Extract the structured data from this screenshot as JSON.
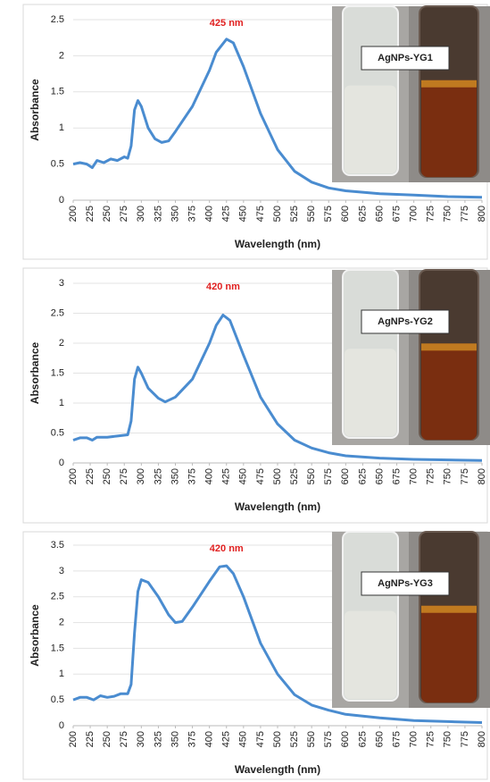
{
  "chart_data": [
    {
      "type": "line",
      "xlabel": "Wavelength (nm)",
      "ylabel": "Absorbance",
      "annotation": "425 nm",
      "sample_label": "AgNPs-YG1",
      "color": "#4a8cd0",
      "x": [
        200,
        210,
        220,
        228,
        235,
        245,
        255,
        265,
        275,
        280,
        285,
        290,
        295,
        300,
        310,
        320,
        330,
        340,
        350,
        375,
        400,
        410,
        425,
        435,
        450,
        475,
        500,
        525,
        550,
        575,
        600,
        650,
        700,
        750,
        800
      ],
      "values": [
        0.5,
        0.52,
        0.5,
        0.45,
        0.55,
        0.52,
        0.57,
        0.55,
        0.6,
        0.58,
        0.75,
        1.25,
        1.38,
        1.3,
        1.0,
        0.85,
        0.8,
        0.82,
        0.95,
        1.3,
        1.8,
        2.05,
        2.23,
        2.18,
        1.85,
        1.2,
        0.7,
        0.4,
        0.25,
        0.17,
        0.13,
        0.09,
        0.07,
        0.05,
        0.04
      ],
      "xlim": [
        200,
        800
      ],
      "xticks": [
        200,
        225,
        250,
        275,
        300,
        325,
        350,
        375,
        400,
        425,
        450,
        475,
        500,
        525,
        550,
        575,
        600,
        625,
        650,
        675,
        700,
        725,
        750,
        775,
        800
      ],
      "ylim": [
        0,
        2.5
      ],
      "yticks": [
        0,
        0.5,
        1,
        1.5,
        2,
        2.5
      ],
      "grid": true
    },
    {
      "type": "line",
      "xlabel": "Wavelength (nm)",
      "ylabel": "Absorbance",
      "annotation": "420 nm",
      "sample_label": "AgNPs-YG2",
      "color": "#4a8cd0",
      "x": [
        200,
        210,
        220,
        228,
        235,
        250,
        265,
        280,
        285,
        290,
        295,
        300,
        310,
        325,
        335,
        350,
        375,
        400,
        410,
        420,
        430,
        450,
        475,
        500,
        525,
        550,
        575,
        600,
        650,
        700,
        750,
        800
      ],
      "values": [
        0.38,
        0.42,
        0.42,
        0.38,
        0.43,
        0.43,
        0.45,
        0.47,
        0.7,
        1.4,
        1.6,
        1.5,
        1.25,
        1.08,
        1.02,
        1.1,
        1.4,
        2.0,
        2.3,
        2.47,
        2.38,
        1.8,
        1.1,
        0.65,
        0.38,
        0.25,
        0.17,
        0.12,
        0.08,
        0.06,
        0.05,
        0.04
      ],
      "xlim": [
        200,
        800
      ],
      "xticks": [
        200,
        225,
        250,
        275,
        300,
        325,
        350,
        375,
        400,
        425,
        450,
        475,
        500,
        525,
        550,
        575,
        600,
        625,
        650,
        675,
        700,
        725,
        750,
        775,
        800
      ],
      "ylim": [
        0,
        3
      ],
      "yticks": [
        0,
        0.5,
        1,
        1.5,
        2,
        2.5,
        3
      ],
      "grid": true
    },
    {
      "type": "line",
      "xlabel": "Wavelength (nm)",
      "ylabel": "Absorbance",
      "annotation": "420 nm",
      "sample_label": "AgNPs-YG3",
      "color": "#4a8cd0",
      "x": [
        200,
        210,
        220,
        230,
        240,
        250,
        260,
        270,
        280,
        285,
        290,
        295,
        300,
        310,
        325,
        340,
        350,
        360,
        375,
        400,
        415,
        425,
        435,
        450,
        475,
        500,
        525,
        550,
        575,
        600,
        650,
        700,
        750,
        800
      ],
      "values": [
        0.5,
        0.55,
        0.55,
        0.5,
        0.58,
        0.55,
        0.57,
        0.62,
        0.62,
        0.8,
        1.8,
        2.6,
        2.83,
        2.78,
        2.5,
        2.15,
        2.0,
        2.02,
        2.3,
        2.8,
        3.08,
        3.1,
        2.95,
        2.5,
        1.6,
        1.0,
        0.6,
        0.4,
        0.3,
        0.22,
        0.15,
        0.1,
        0.08,
        0.06
      ],
      "xlim": [
        200,
        800
      ],
      "xticks": [
        200,
        225,
        250,
        275,
        300,
        325,
        350,
        375,
        400,
        425,
        450,
        475,
        500,
        525,
        550,
        575,
        600,
        625,
        650,
        675,
        700,
        725,
        750,
        775,
        800
      ],
      "ylim": [
        0,
        3.5
      ],
      "yticks": [
        0,
        0.5,
        1,
        1.5,
        2,
        2.5,
        3,
        3.5
      ],
      "grid": true
    }
  ]
}
